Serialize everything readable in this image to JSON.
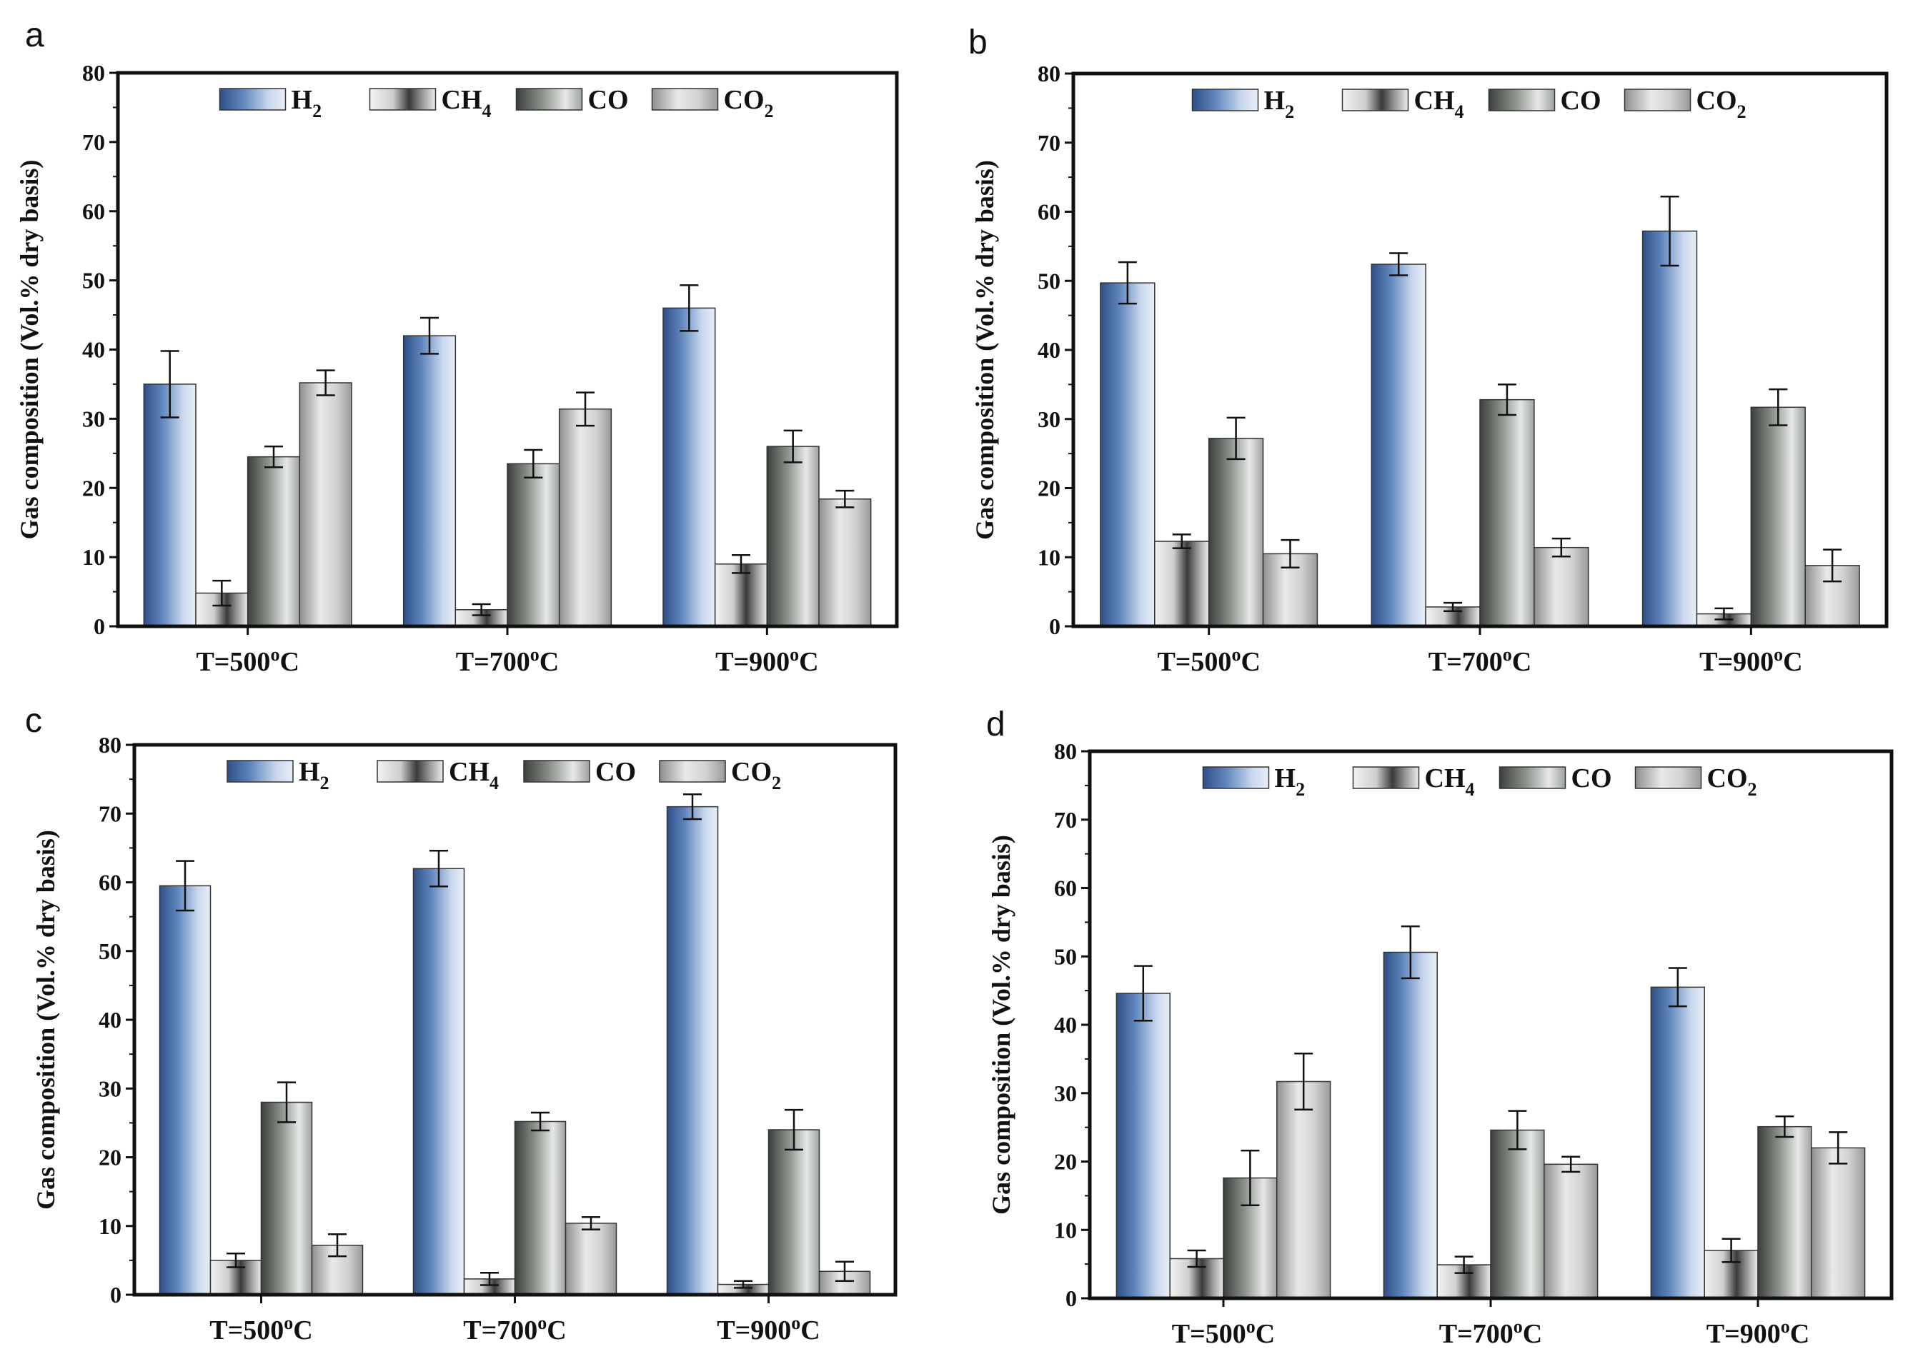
{
  "colors": {
    "h2": "#5a7fb3",
    "ch4": "#8a8a8a",
    "co": "#7e847e",
    "co2": "#b8b8b8",
    "frame": "#111111"
  },
  "chart_data": [
    {
      "panel": "a",
      "type": "bar",
      "ylabel": "Gas composition (Vol.% dry basis)",
      "ylim": [
        0,
        80
      ],
      "yticks": [
        "0",
        "10",
        "20",
        "30",
        "40",
        "50",
        "60",
        "70",
        "80"
      ],
      "categories": [
        "T=500",
        "T=700",
        "T=900"
      ],
      "category_suffix": "C",
      "category_sup": "o",
      "legend_position": "top",
      "series": [
        {
          "key": "h2",
          "name": "H",
          "sub": "2",
          "values": [
            35.0,
            42.0,
            46.0
          ],
          "errors": [
            4.8,
            2.6,
            3.3
          ]
        },
        {
          "key": "ch4",
          "name": "CH",
          "sub": "4",
          "values": [
            4.8,
            2.4,
            9.0
          ],
          "errors": [
            1.8,
            0.8,
            1.3
          ]
        },
        {
          "key": "co",
          "name": "CO",
          "sub": "",
          "values": [
            24.5,
            23.5,
            26.0
          ],
          "errors": [
            1.5,
            2.0,
            2.3
          ]
        },
        {
          "key": "co2",
          "name": "CO",
          "sub": "2",
          "values": [
            35.2,
            31.4,
            18.4
          ],
          "errors": [
            1.8,
            2.4,
            1.2
          ]
        }
      ]
    },
    {
      "panel": "b",
      "type": "bar",
      "ylabel": "Gas composition (Vol.% dry basis)",
      "ylim": [
        0,
        80
      ],
      "yticks": [
        "0",
        "10",
        "20",
        "30",
        "40",
        "50",
        "60",
        "70",
        "80"
      ],
      "categories": [
        "T=500",
        "T=700",
        "T=900"
      ],
      "category_suffix": "C",
      "category_sup": "o",
      "legend_position": "top",
      "series": [
        {
          "key": "h2",
          "name": "H",
          "sub": "2",
          "values": [
            49.7,
            52.4,
            57.2
          ],
          "errors": [
            3.0,
            1.6,
            5.0
          ]
        },
        {
          "key": "ch4",
          "name": "CH",
          "sub": "4",
          "values": [
            12.3,
            2.8,
            1.8
          ],
          "errors": [
            1.0,
            0.6,
            0.8
          ]
        },
        {
          "key": "co",
          "name": "CO",
          "sub": "",
          "values": [
            27.2,
            32.8,
            31.7
          ],
          "errors": [
            3.0,
            2.2,
            2.6
          ]
        },
        {
          "key": "co2",
          "name": "CO",
          "sub": "2",
          "values": [
            10.5,
            11.4,
            8.8
          ],
          "errors": [
            2.0,
            1.3,
            2.3
          ]
        }
      ]
    },
    {
      "panel": "c",
      "type": "bar",
      "ylabel": "Gas composition (Vol.% dry basis)",
      "ylim": [
        0,
        80
      ],
      "yticks": [
        "0",
        "10",
        "20",
        "30",
        "40",
        "50",
        "60",
        "70",
        "80"
      ],
      "categories": [
        "T=500",
        "T=700",
        "T=900"
      ],
      "category_suffix": "C",
      "category_sup": "o",
      "legend_position": "top",
      "series": [
        {
          "key": "h2",
          "name": "H",
          "sub": "2",
          "values": [
            59.5,
            62.0,
            71.0
          ],
          "errors": [
            3.6,
            2.6,
            1.8
          ]
        },
        {
          "key": "ch4",
          "name": "CH",
          "sub": "4",
          "values": [
            5.0,
            2.3,
            1.5
          ],
          "errors": [
            1.0,
            0.9,
            0.5
          ]
        },
        {
          "key": "co",
          "name": "CO",
          "sub": "",
          "values": [
            28.0,
            25.2,
            24.0
          ],
          "errors": [
            2.9,
            1.3,
            2.9
          ]
        },
        {
          "key": "co2",
          "name": "CO",
          "sub": "2",
          "values": [
            7.2,
            10.4,
            3.4
          ],
          "errors": [
            1.6,
            0.9,
            1.4
          ]
        }
      ]
    },
    {
      "panel": "d",
      "type": "bar",
      "ylabel": "Gas composition (Vol.% dry basis)",
      "ylim": [
        0,
        80
      ],
      "yticks": [
        "0",
        "10",
        "20",
        "30",
        "40",
        "50",
        "60",
        "70",
        "80"
      ],
      "categories": [
        "T=500",
        "T=700",
        "T=900"
      ],
      "category_suffix": "C",
      "category_sup": "o",
      "legend_position": "top",
      "series": [
        {
          "key": "h2",
          "name": "H",
          "sub": "2",
          "values": [
            44.6,
            50.6,
            45.5
          ],
          "errors": [
            4.0,
            3.8,
            2.8
          ]
        },
        {
          "key": "ch4",
          "name": "CH",
          "sub": "4",
          "values": [
            5.8,
            4.9,
            7.0
          ],
          "errors": [
            1.2,
            1.2,
            1.7
          ]
        },
        {
          "key": "co",
          "name": "CO",
          "sub": "",
          "values": [
            17.6,
            24.6,
            25.1
          ],
          "errors": [
            4.0,
            2.8,
            1.5
          ]
        },
        {
          "key": "co2",
          "name": "CO",
          "sub": "2",
          "values": [
            31.7,
            19.6,
            22.0
          ],
          "errors": [
            4.1,
            1.1,
            2.3
          ]
        }
      ]
    }
  ]
}
